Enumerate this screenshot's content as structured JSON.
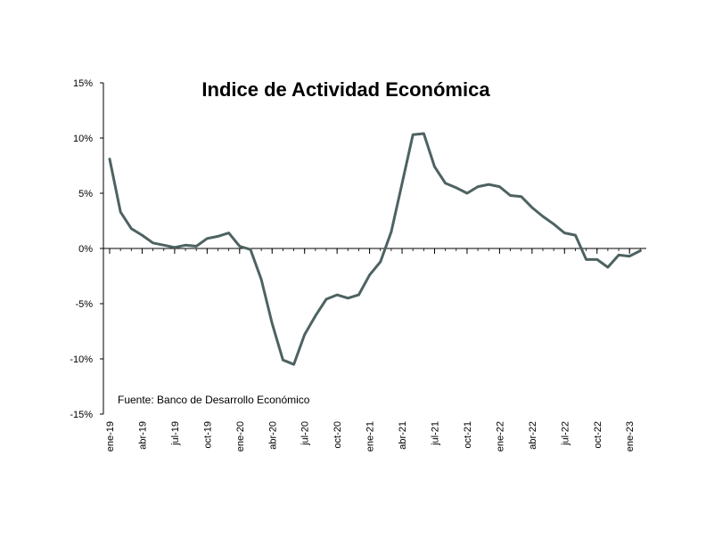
{
  "chart_data": {
    "type": "line",
    "title": "Indice de Actividad Económica",
    "source_note": "Fuente: Banco de Desarrollo Económico",
    "xlabel": "",
    "ylabel": "",
    "ylim": [
      -15,
      15
    ],
    "y_ticks": [
      "15%",
      "10%",
      "5%",
      "0%",
      "-5%",
      "-10%",
      "-15%"
    ],
    "y_tick_values": [
      15,
      10,
      5,
      0,
      -5,
      -10,
      -15
    ],
    "x": [
      "ene-19",
      "feb-19",
      "mar-19",
      "abr-19",
      "may-19",
      "jun-19",
      "jul-19",
      "ago-19",
      "sep-19",
      "oct-19",
      "nov-19",
      "dic-19",
      "ene-20",
      "feb-20",
      "mar-20",
      "abr-20",
      "may-20",
      "jun-20",
      "jul-20",
      "ago-20",
      "sep-20",
      "oct-20",
      "nov-20",
      "dic-20",
      "ene-21",
      "feb-21",
      "mar-21",
      "abr-21",
      "may-21",
      "jun-21",
      "jul-21",
      "ago-21",
      "sep-21",
      "oct-21",
      "nov-21",
      "dic-21",
      "ene-22",
      "feb-22",
      "mar-22",
      "abr-22",
      "may-22",
      "jun-22",
      "jul-22",
      "ago-22",
      "sep-22",
      "oct-22",
      "nov-22",
      "dic-22",
      "ene-23",
      "feb-23"
    ],
    "x_tick_labels": [
      "ene-19",
      "abr-19",
      "jul-19",
      "oct-19",
      "ene-20",
      "abr-20",
      "jul-20",
      "oct-20",
      "ene-21",
      "abr-21",
      "jul-21",
      "oct-21",
      "ene-22",
      "abr-22",
      "jul-22",
      "oct-22",
      "ene-23"
    ],
    "x_tick_indices": [
      0,
      3,
      6,
      9,
      12,
      15,
      18,
      21,
      24,
      27,
      30,
      33,
      36,
      39,
      42,
      45,
      48
    ],
    "series": [
      {
        "values": [
          8.1,
          3.3,
          1.8,
          1.2,
          0.5,
          0.3,
          0.1,
          0.3,
          0.2,
          0.9,
          1.1,
          1.4,
          0.2,
          -0.1,
          -2.8,
          -6.8,
          -10.1,
          -10.5,
          -7.8,
          -6.1,
          -4.6,
          -4.2,
          -4.5,
          -4.2,
          -2.4,
          -1.2,
          1.5,
          5.9,
          10.3,
          10.4,
          7.4,
          5.9,
          5.5,
          5.0,
          5.6,
          5.8,
          5.6,
          4.8,
          4.7,
          3.7,
          2.9,
          2.2,
          1.4,
          1.2,
          -1.0,
          -1.0,
          -1.7,
          -0.6,
          -0.7,
          -0.2
        ],
        "color": "#4e6262"
      }
    ],
    "grid": false,
    "legend": "none"
  }
}
